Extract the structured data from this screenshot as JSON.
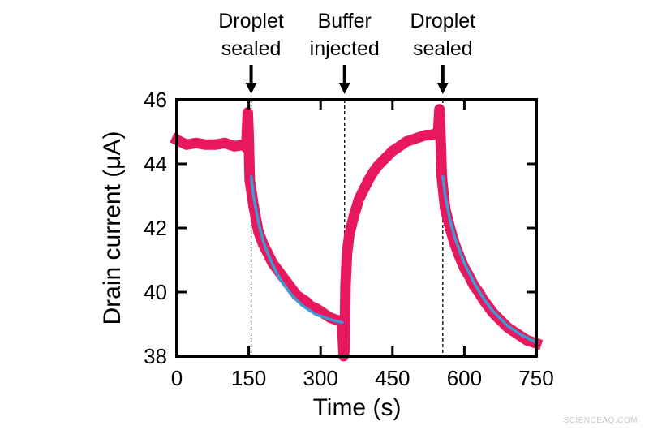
{
  "chart_data": {
    "type": "line",
    "xlabel": "Time (s)",
    "ylabel": "Drain current (μA)",
    "xlim": [
      0,
      750
    ],
    "ylim": [
      38,
      46
    ],
    "xticks": [
      0,
      150,
      300,
      450,
      600,
      750
    ],
    "yticks": [
      38,
      40,
      42,
      44,
      46
    ],
    "grid": false,
    "annotations": [
      {
        "x": 155,
        "lines": [
          "Droplet",
          "sealed"
        ]
      },
      {
        "x": 350,
        "lines": [
          "Buffer",
          "injected"
        ]
      },
      {
        "x": 555,
        "lines": [
          "Droplet",
          "sealed"
        ]
      }
    ],
    "series": [
      {
        "role": "measured",
        "color": "#e8185e",
        "points": [
          [
            0,
            44.75
          ],
          [
            20,
            44.6
          ],
          [
            40,
            44.65
          ],
          [
            60,
            44.6
          ],
          [
            80,
            44.6
          ],
          [
            100,
            44.65
          ],
          [
            120,
            44.55
          ],
          [
            140,
            44.6
          ],
          [
            145,
            44.5
          ],
          [
            148,
            45.6
          ],
          [
            150,
            44.8
          ],
          [
            152,
            43.5
          ],
          [
            155,
            43.2
          ],
          [
            160,
            42.7
          ],
          [
            170,
            41.9
          ],
          [
            180,
            41.5
          ],
          [
            190,
            41.2
          ],
          [
            200,
            40.9
          ],
          [
            210,
            40.7
          ],
          [
            220,
            40.5
          ],
          [
            230,
            40.3
          ],
          [
            240,
            40.1
          ],
          [
            250,
            39.9
          ],
          [
            260,
            39.8
          ],
          [
            270,
            39.7
          ],
          [
            280,
            39.55
          ],
          [
            290,
            39.5
          ],
          [
            300,
            39.4
          ],
          [
            310,
            39.3
          ],
          [
            320,
            39.2
          ],
          [
            330,
            39.15
          ],
          [
            340,
            39.1
          ],
          [
            345,
            39.0
          ],
          [
            348,
            38.0
          ],
          [
            350,
            38.2
          ],
          [
            352,
            40.2
          ],
          [
            355,
            41.2
          ],
          [
            360,
            41.8
          ],
          [
            370,
            42.4
          ],
          [
            380,
            42.9
          ],
          [
            390,
            43.2
          ],
          [
            400,
            43.5
          ],
          [
            410,
            43.75
          ],
          [
            420,
            43.95
          ],
          [
            430,
            44.1
          ],
          [
            440,
            44.25
          ],
          [
            450,
            44.4
          ],
          [
            460,
            44.5
          ],
          [
            470,
            44.6
          ],
          [
            480,
            44.7
          ],
          [
            490,
            44.75
          ],
          [
            500,
            44.8
          ],
          [
            510,
            44.85
          ],
          [
            520,
            44.9
          ],
          [
            530,
            44.9
          ],
          [
            540,
            44.95
          ],
          [
            545,
            44.9
          ],
          [
            548,
            45.7
          ],
          [
            551,
            44.5
          ],
          [
            553,
            43.6
          ],
          [
            555,
            43.3
          ],
          [
            560,
            42.6
          ],
          [
            570,
            42.0
          ],
          [
            580,
            41.5
          ],
          [
            590,
            41.1
          ],
          [
            600,
            40.75
          ],
          [
            610,
            40.5
          ],
          [
            620,
            40.2
          ],
          [
            630,
            40.0
          ],
          [
            640,
            39.75
          ],
          [
            650,
            39.55
          ],
          [
            660,
            39.35
          ],
          [
            670,
            39.2
          ],
          [
            680,
            39.05
          ],
          [
            690,
            38.9
          ],
          [
            700,
            38.8
          ],
          [
            710,
            38.7
          ],
          [
            720,
            38.6
          ],
          [
            730,
            38.5
          ],
          [
            740,
            38.45
          ],
          [
            750,
            38.4
          ]
        ]
      },
      {
        "role": "fit",
        "color": "#3a9bd6",
        "points": [
          [
            155,
            43.6
          ],
          [
            160,
            43.0
          ],
          [
            170,
            42.2
          ],
          [
            180,
            41.6
          ],
          [
            190,
            41.2
          ],
          [
            200,
            40.85
          ],
          [
            210,
            40.55
          ],
          [
            220,
            40.3
          ],
          [
            230,
            40.1
          ],
          [
            240,
            39.9
          ],
          [
            250,
            39.75
          ],
          [
            260,
            39.6
          ],
          [
            270,
            39.5
          ],
          [
            280,
            39.4
          ],
          [
            290,
            39.3
          ],
          [
            300,
            39.25
          ],
          [
            310,
            39.2
          ],
          [
            320,
            39.15
          ],
          [
            330,
            39.1
          ],
          [
            345,
            39.05
          ],
          [
            555,
            43.6
          ],
          [
            560,
            43.0
          ],
          [
            570,
            42.25
          ],
          [
            580,
            41.7
          ],
          [
            590,
            41.3
          ],
          [
            600,
            40.9
          ],
          [
            610,
            40.6
          ],
          [
            620,
            40.3
          ],
          [
            630,
            40.05
          ],
          [
            640,
            39.8
          ],
          [
            650,
            39.6
          ],
          [
            660,
            39.4
          ],
          [
            670,
            39.25
          ],
          [
            680,
            39.1
          ],
          [
            690,
            38.95
          ],
          [
            700,
            38.85
          ],
          [
            710,
            38.75
          ],
          [
            720,
            38.65
          ],
          [
            730,
            38.58
          ],
          [
            740,
            38.5
          ],
          [
            750,
            38.45
          ]
        ]
      }
    ]
  },
  "watermark": "SCIENCEAQ.COM"
}
